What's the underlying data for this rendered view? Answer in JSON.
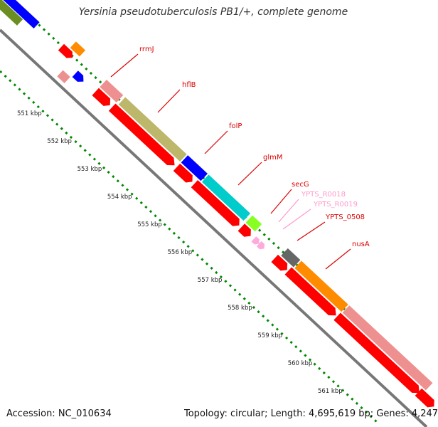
{
  "title": "Yersinia pseudotuberculosis PB1/+, complete genome",
  "accession_label": "Accession: NC_010634",
  "topology_label": "Topology: circular; Length: 4,695,619 bp; Genes: 4,247",
  "kbp_ticks": [
    "551 kbp",
    "552 kbp",
    "553 kbp",
    "554 kbp",
    "555 kbp",
    "556 kbp",
    "557 kbp",
    "558 kbp",
    "559 kbp",
    "560 kbp",
    "561 kbp"
  ],
  "colors": {
    "red": "#ff0000",
    "pink": "#ee9090",
    "khaki": "#bdb76b",
    "blue": "#0000ff",
    "cyan": "#00cccc",
    "lime": "#88ff22",
    "gray": "#666666",
    "orange": "#ff8c00",
    "olive": "#6b8e23",
    "light_pink": "#ffaadd",
    "label_red": "#dd0000",
    "label_pink": "#ff99cc",
    "tick_green": "#008800"
  },
  "genes": [
    {
      "label": "rrmJ",
      "color": "label_red"
    },
    {
      "label": "hflB",
      "color": "label_red"
    },
    {
      "label": "folP",
      "color": "label_red"
    },
    {
      "label": "glmM",
      "color": "label_red"
    },
    {
      "label": "secG",
      "color": "label_red"
    },
    {
      "label": "YPTS_R0018",
      "color": "label_pink"
    },
    {
      "label": "YPTS_R0019",
      "color": "label_pink"
    },
    {
      "label": "YPTS_0508",
      "color": "label_red"
    },
    {
      "label": "nusA",
      "color": "label_red"
    }
  ]
}
